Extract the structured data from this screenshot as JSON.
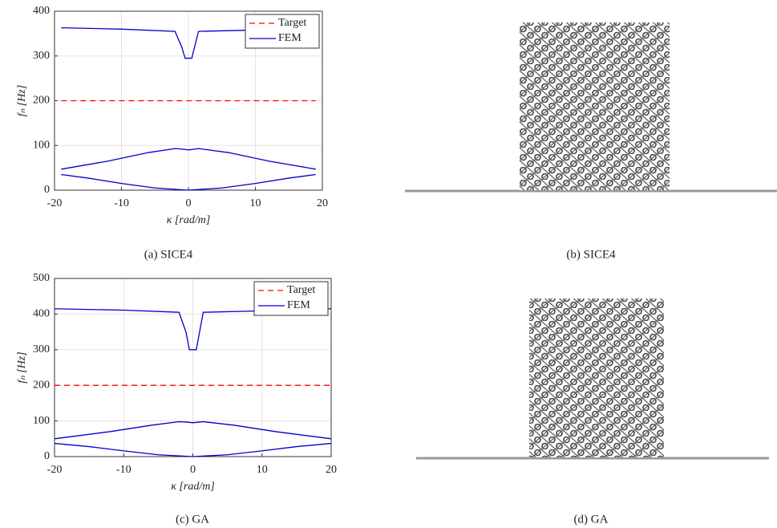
{
  "chart_data": [
    {
      "type": "line",
      "xlabel": "κ [rad/m]",
      "ylabel": "fₙ [Hz]",
      "xlim": [
        -20,
        20
      ],
      "xticks": [
        -20,
        -10,
        0,
        10,
        20
      ],
      "ylim": [
        0,
        400
      ],
      "yticks": [
        0,
        100,
        200,
        300,
        400
      ],
      "grid": true,
      "legend": "upper right",
      "series": [
        {
          "name": "Target",
          "color": "#ff0000",
          "dashed": true,
          "x": [
            -19,
            19
          ],
          "values": [
            200,
            200
          ]
        },
        {
          "name": "FEM",
          "color": "#0000cc",
          "x": [
            -19,
            -10,
            -2,
            -1,
            -0.5,
            0.5,
            1.5,
            10,
            19,
            null,
            -19,
            -12,
            -6,
            -2,
            -1,
            0,
            1,
            1.5,
            6,
            12,
            19,
            null,
            -19,
            -15,
            -10,
            -5,
            0,
            5,
            10,
            15,
            19
          ],
          "values": [
            363,
            360,
            355,
            320,
            295,
            295,
            355,
            358,
            363,
            null,
            47,
            65,
            84,
            93,
            92,
            90,
            92,
            93,
            84,
            65,
            47,
            null,
            35,
            27,
            15,
            5,
            0,
            5,
            15,
            27,
            35
          ]
        }
      ]
    },
    {
      "type": "line",
      "xlabel": "κ [rad/m]",
      "ylabel": "fₙ [Hz]",
      "xlim": [
        -20,
        20
      ],
      "xticks": [
        -20,
        -10,
        0,
        10,
        20
      ],
      "ylim": [
        0,
        500
      ],
      "yticks": [
        0,
        100,
        200,
        300,
        400,
        500
      ],
      "grid": true,
      "legend": "upper right",
      "series": [
        {
          "name": "Target",
          "color": "#ff0000",
          "dashed": true,
          "x": [
            -20,
            20
          ],
          "values": [
            200,
            200
          ]
        },
        {
          "name": "FEM",
          "color": "#0000cc",
          "x": [
            -20,
            -10,
            -2,
            -1,
            -0.5,
            0.5,
            1.5,
            10,
            20,
            null,
            -20,
            -12,
            -6,
            -2,
            -1,
            0,
            1,
            1.5,
            6,
            12,
            20,
            null,
            -20,
            -15,
            -10,
            -5,
            0,
            5,
            10,
            15,
            20
          ],
          "values": [
            415,
            411,
            405,
            350,
            300,
            300,
            405,
            409,
            415,
            null,
            50,
            70,
            88,
            98,
            97,
            95,
            97,
            98,
            88,
            70,
            50,
            null,
            37,
            28,
            16,
            5,
            0,
            5,
            16,
            28,
            37
          ]
        }
      ]
    }
  ],
  "captions": [
    "(a) SICE4",
    "(b) SICE4",
    "(c) GA",
    "(d) GA"
  ]
}
